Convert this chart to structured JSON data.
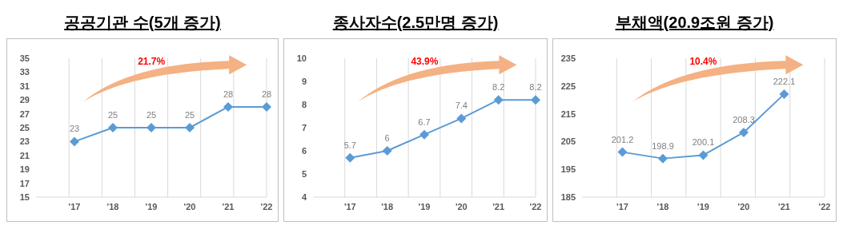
{
  "chart_data": [
    {
      "type": "line",
      "title": "공공기관 수(5개 증가)",
      "categories": [
        null,
        "'17",
        "'18",
        "'19",
        "'20",
        "'21",
        "'22"
      ],
      "series": [
        {
          "color": "#5b9bd5",
          "values": [
            null,
            23,
            25,
            25,
            25,
            28,
            28
          ]
        }
      ],
      "ylim": [
        15,
        35
      ],
      "yticks": [
        15,
        17,
        19,
        21,
        23,
        25,
        27,
        29,
        31,
        33,
        35
      ],
      "grid": "x",
      "marker": "diamond",
      "data_labels": true,
      "annotations": [
        "21.7%"
      ]
    },
    {
      "type": "line",
      "title": "종사자수(2.5만명 증가)",
      "categories": [
        null,
        "'17",
        "'18",
        "'19",
        "'20",
        "'21",
        "'22"
      ],
      "series": [
        {
          "color": "#5b9bd5",
          "values": [
            null,
            5.7,
            6,
            6.7,
            7.4,
            8.2,
            8.2
          ]
        }
      ],
      "ylim": [
        4,
        10
      ],
      "yticks": [
        4,
        5,
        6,
        7,
        8,
        9,
        10
      ],
      "grid": "x",
      "marker": "diamond",
      "data_labels": true,
      "annotations": [
        "43.9%"
      ]
    },
    {
      "type": "line",
      "title": "부채액(20.9조원 증가)",
      "categories": [
        null,
        "'17",
        "'18",
        "'19",
        "'20",
        "'21",
        "'22"
      ],
      "series": [
        {
          "color": "#5b9bd5",
          "values": [
            null,
            201.2,
            198.9,
            200.1,
            208.3,
            222.1,
            null
          ]
        }
      ],
      "ylim": [
        185,
        235
      ],
      "yticks": [
        185,
        195,
        205,
        215,
        225,
        235
      ],
      "grid": "x",
      "marker": "diamond",
      "data_labels": true,
      "annotations": [
        "10.4%"
      ]
    }
  ]
}
